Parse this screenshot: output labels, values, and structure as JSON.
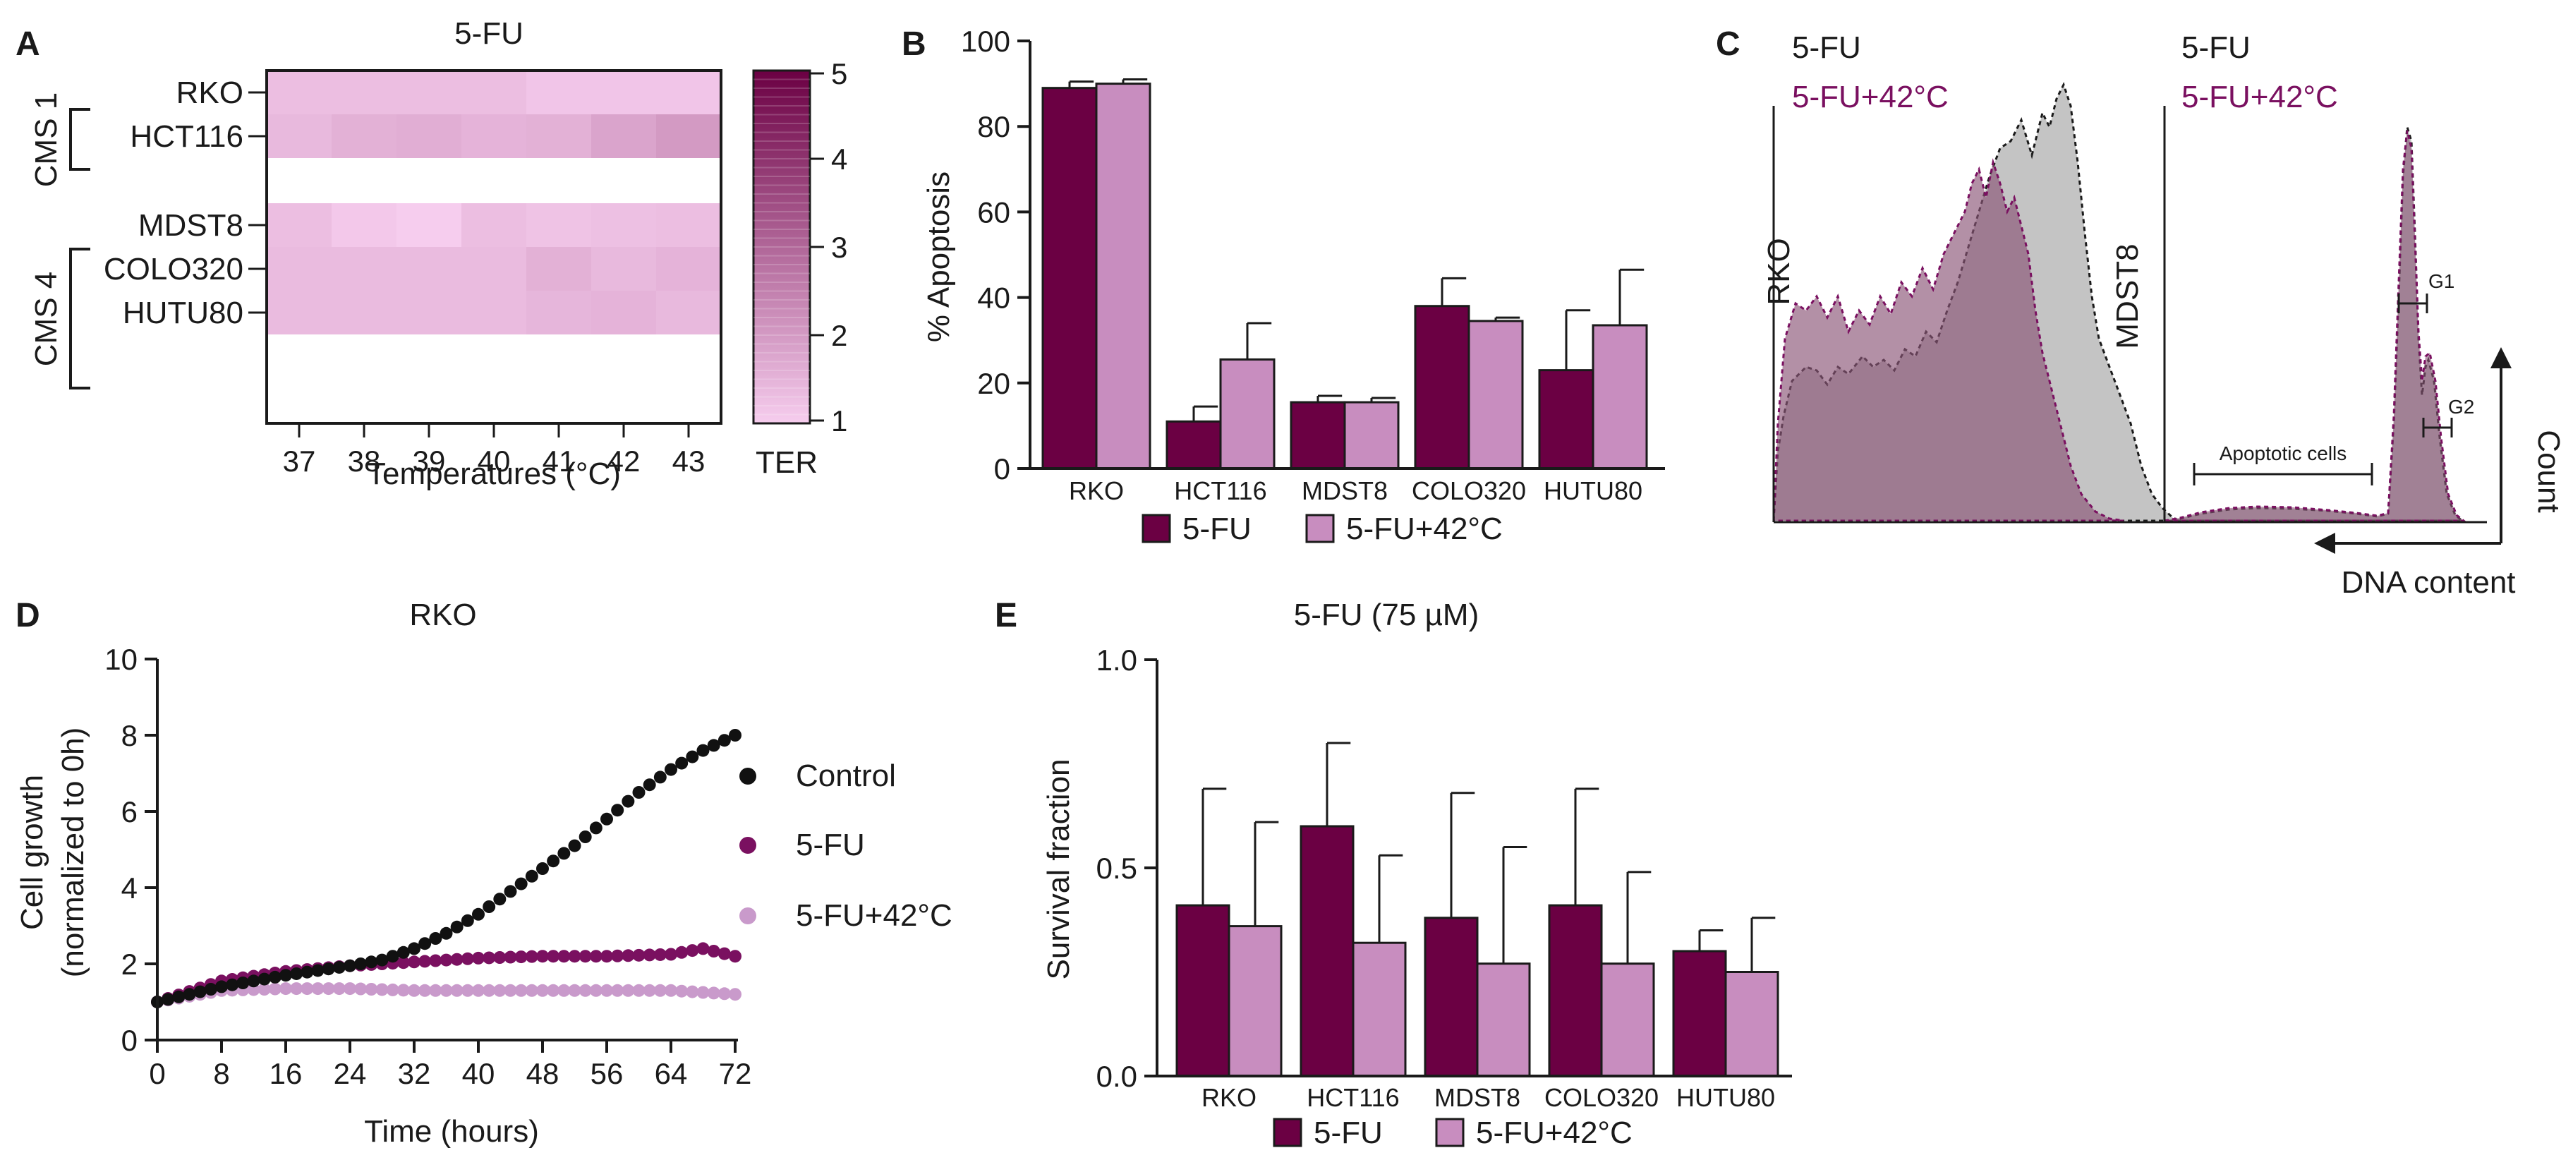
{
  "colors": {
    "fu": "#6b0043",
    "fu42": "#c88dbf",
    "control": "#111111",
    "fu_line": "#7a1060",
    "fu42_line": "#c99acb",
    "heat_low": "#f6cdee",
    "heat_high": "#6b0043"
  },
  "panels": {
    "a": {
      "letter": "A"
    },
    "b": {
      "letter": "B"
    },
    "c": {
      "letter": "C",
      "legend_fu": "5-FU",
      "legend_fu42": "5-FU+42°C",
      "rko_label": "RKO",
      "mdst8_label": "MDST8",
      "g1_label": "G1",
      "g2_label": "G2",
      "apoptotic_label": "Apoptotic cells",
      "count_label": "Count",
      "dna_label": "DNA content"
    },
    "d": {
      "letter": "D"
    },
    "e": {
      "letter": "E"
    }
  },
  "chart_data": [
    {
      "id": "A",
      "type": "heatmap",
      "title": "5-FU",
      "xlabel": "Temperatures (°C)",
      "x": [
        "37",
        "38",
        "39",
        "40",
        "41",
        "42",
        "43"
      ],
      "rows": [
        "RKO",
        "HCT116",
        "MDST8",
        "COLO320",
        "HUTU80"
      ],
      "groups": [
        {
          "name": "CMS 1",
          "rows": [
            "RKO",
            "HCT116"
          ]
        },
        {
          "name": "CMS 4",
          "rows": [
            "MDST8",
            "COLO320",
            "HUTU80"
          ]
        }
      ],
      "values": [
        [
          1.3,
          1.3,
          1.3,
          1.3,
          1.15,
          1.15,
          1.15
        ],
        [
          1.4,
          1.55,
          1.6,
          1.5,
          1.55,
          1.8,
          2.0
        ],
        [
          1.3,
          1.1,
          1.0,
          1.3,
          1.2,
          1.25,
          1.3
        ],
        [
          1.35,
          1.35,
          1.35,
          1.35,
          1.55,
          1.4,
          1.5
        ],
        [
          1.35,
          1.35,
          1.35,
          1.35,
          1.45,
          1.5,
          1.4
        ]
      ],
      "colorbar": {
        "label": "TER",
        "min": 1,
        "max": 5,
        "ticks": [
          "1",
          "2",
          "3",
          "4",
          "5"
        ]
      }
    },
    {
      "id": "B",
      "type": "bar",
      "ylabel": "% Apoptosis",
      "ylim": [
        0,
        100
      ],
      "yticks": [
        "0",
        "20",
        "40",
        "60",
        "80",
        "100"
      ],
      "categories": [
        "RKO",
        "HCT116",
        "MDST8",
        "COLO320",
        "HUTU80"
      ],
      "series": [
        {
          "name": "5-FU",
          "values": [
            89,
            11,
            15.5,
            38,
            23
          ],
          "errors": [
            1.5,
            3.5,
            1.5,
            6.5,
            14
          ]
        },
        {
          "name": "5-FU+42°C",
          "values": [
            90,
            25.5,
            15.5,
            34.5,
            33.5
          ],
          "errors": [
            1,
            8.5,
            1,
            0.8,
            13
          ]
        }
      ]
    },
    {
      "id": "D",
      "type": "scatter",
      "title": "RKO",
      "xlabel": "Time (hours)",
      "ylabel_line1": "Cell growth",
      "ylabel_line2": "(normalized to 0h)",
      "xlim": [
        0,
        72
      ],
      "ylim": [
        0,
        10
      ],
      "xticks": [
        "0",
        "8",
        "16",
        "24",
        "32",
        "40",
        "48",
        "56",
        "64",
        "72"
      ],
      "yticks": [
        "0",
        "2",
        "4",
        "6",
        "8",
        "10"
      ],
      "series": [
        {
          "name": "Control",
          "x": [
            0,
            8,
            16,
            24,
            28,
            32,
            36,
            40,
            44,
            48,
            52,
            56,
            60,
            64,
            68,
            72
          ],
          "y": [
            1.0,
            1.4,
            1.7,
            1.95,
            2.1,
            2.4,
            2.8,
            3.3,
            3.9,
            4.5,
            5.1,
            5.8,
            6.5,
            7.1,
            7.6,
            8.0
          ]
        },
        {
          "name": "5-FU",
          "x": [
            0,
            8,
            16,
            24,
            32,
            40,
            48,
            56,
            64,
            68,
            72
          ],
          "y": [
            1.0,
            1.55,
            1.8,
            1.95,
            2.05,
            2.15,
            2.2,
            2.2,
            2.25,
            2.4,
            2.2
          ]
        },
        {
          "name": "5-FU+42°C",
          "x": [
            0,
            8,
            16,
            24,
            32,
            40,
            48,
            56,
            64,
            72
          ],
          "y": [
            1.0,
            1.3,
            1.35,
            1.35,
            1.3,
            1.3,
            1.3,
            1.3,
            1.3,
            1.2
          ]
        }
      ]
    },
    {
      "id": "E",
      "type": "bar",
      "title": "5-FU (75 µM)",
      "ylabel": "Survival fraction",
      "ylim": [
        0,
        1.0
      ],
      "yticks": [
        "0.0",
        "0.5",
        "1.0"
      ],
      "categories": [
        "RKO",
        "HCT116",
        "MDST8",
        "COLO320",
        "HUTU80"
      ],
      "series": [
        {
          "name": "5-FU",
          "values": [
            0.41,
            0.6,
            0.38,
            0.41,
            0.3
          ],
          "errors": [
            0.28,
            0.2,
            0.3,
            0.28,
            0.05
          ]
        },
        {
          "name": "5-FU+42°C",
          "values": [
            0.36,
            0.32,
            0.27,
            0.27,
            0.25
          ],
          "errors": [
            0.25,
            0.21,
            0.28,
            0.22,
            0.13
          ]
        }
      ]
    }
  ]
}
